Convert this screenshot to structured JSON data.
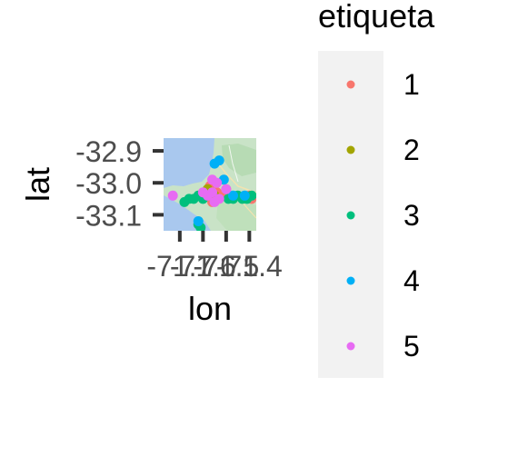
{
  "chart_data": {
    "type": "scatter",
    "title": "",
    "xlabel": "lon",
    "ylabel": "lat",
    "x_ticks": [
      "-71.7",
      "-71.6",
      "-71.5",
      "-71.4"
    ],
    "x_tick_values": [
      -71.7,
      -71.6,
      -71.5,
      -71.4
    ],
    "y_ticks": [
      "-32.9",
      "-33.0",
      "-33.1"
    ],
    "y_tick_values": [
      -32.9,
      -33.0,
      -33.1
    ],
    "xlim": [
      -71.77,
      -71.37
    ],
    "ylim": [
      -33.15,
      -32.86
    ],
    "grid": false,
    "legend_title": "etiqueta",
    "legend_position": "right",
    "basemap": "map-tiles",
    "series": [
      {
        "name": "1",
        "color": "#F8766D",
        "points": [
          [
            -71.5,
            -33.02
          ],
          [
            -71.54,
            -33.03
          ],
          [
            -71.57,
            -33.01
          ],
          [
            -71.4,
            -33.04
          ],
          [
            -71.39,
            -33.05
          ],
          [
            -71.56,
            -33.06
          ],
          [
            -71.52,
            -33.04
          ]
        ]
      },
      {
        "name": "2",
        "color": "#A3A500",
        "points": [
          [
            -71.58,
            -33.02
          ],
          [
            -71.55,
            -33.04
          ]
        ]
      },
      {
        "name": "3",
        "color": "#00BF7D",
        "points": [
          [
            -71.68,
            -33.06
          ],
          [
            -71.66,
            -33.05
          ],
          [
            -71.64,
            -33.05
          ],
          [
            -71.62,
            -33.04
          ],
          [
            -71.6,
            -33.05
          ],
          [
            -71.49,
            -33.05
          ],
          [
            -71.47,
            -33.05
          ],
          [
            -71.45,
            -33.04
          ],
          [
            -71.43,
            -33.05
          ],
          [
            -71.41,
            -33.05
          ],
          [
            -71.39,
            -33.04
          ],
          [
            -71.62,
            -33.13
          ],
          [
            -71.61,
            -33.14
          ]
        ]
      },
      {
        "name": "4",
        "color": "#00B0F6",
        "points": [
          [
            -71.55,
            -32.94
          ],
          [
            -71.53,
            -32.93
          ],
          [
            -71.51,
            -32.99
          ],
          [
            -71.47,
            -33.04
          ],
          [
            -71.42,
            -33.04
          ],
          [
            -71.62,
            -33.12
          ]
        ]
      },
      {
        "name": "5",
        "color": "#E76BF3",
        "points": [
          [
            -71.73,
            -33.04
          ],
          [
            -71.56,
            -32.99
          ],
          [
            -71.54,
            -33.0
          ],
          [
            -71.56,
            -33.03
          ],
          [
            -71.58,
            -33.04
          ],
          [
            -71.53,
            -33.05
          ],
          [
            -71.55,
            -33.06
          ],
          [
            -71.5,
            -33.02
          ],
          [
            -71.6,
            -33.03
          ]
        ]
      }
    ]
  }
}
